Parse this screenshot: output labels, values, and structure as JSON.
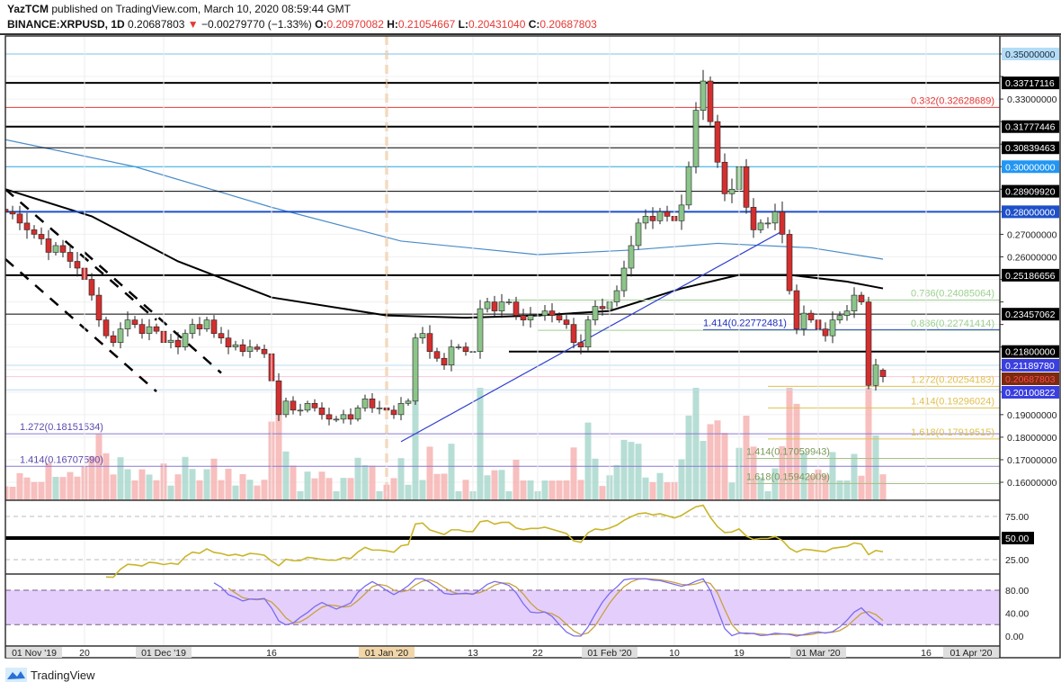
{
  "header": {
    "author": "YazTCM",
    "published": "published on TradingView.com, March 10, 2020 08:59:44 GMT",
    "symbol": "BINANCE:XRPUSD, 1D",
    "last": "0.20687803",
    "change": "−0.00279770 (−1.33%)",
    "o_label": "O:",
    "o": "0.20970082",
    "h_label": "H:",
    "h": "0.21054667",
    "l_label": "L:",
    "l": "0.20431040",
    "c_label": "C:",
    "c": "0.20687803"
  },
  "brand": "TradingView",
  "colors": {
    "up": "#8cc48a",
    "down": "#d32f2f",
    "vol_up": "#9fd3c7",
    "vol_down": "#f4a9a8",
    "rsi": "#c9b52a",
    "stoch_k": "#7b6cf0",
    "stoch_d": "#c8a040",
    "stoch_band": "#e4cffc"
  },
  "chart_data": {
    "type": "candlestick",
    "start_date": "2019-11-09",
    "closes": [
      0.28,
      0.279,
      0.275,
      0.272,
      0.27,
      0.268,
      0.262,
      0.265,
      0.262,
      0.258,
      0.255,
      0.25,
      0.243,
      0.232,
      0.225,
      0.222,
      0.228,
      0.232,
      0.23,
      0.226,
      0.229,
      0.227,
      0.222,
      0.223,
      0.22,
      0.226,
      0.23,
      0.228,
      0.232,
      0.226,
      0.224,
      0.22,
      0.221,
      0.218,
      0.22,
      0.219,
      0.217,
      0.205,
      0.19,
      0.196,
      0.192,
      0.192,
      0.195,
      0.193,
      0.19,
      0.188,
      0.188,
      0.19,
      0.188,
      0.193,
      0.197,
      0.193,
      0.193,
      0.192,
      0.19,
      0.195,
      0.196,
      0.224,
      0.226,
      0.218,
      0.215,
      0.212,
      0.22,
      0.22,
      0.218,
      0.218,
      0.237,
      0.24,
      0.236,
      0.24,
      0.24,
      0.234,
      0.232,
      0.234,
      0.234,
      0.236,
      0.234,
      0.232,
      0.23,
      0.222,
      0.22,
      0.232,
      0.238,
      0.237,
      0.24,
      0.245,
      0.255,
      0.265,
      0.275,
      0.278,
      0.276,
      0.28,
      0.278,
      0.276,
      0.283,
      0.3,
      0.325,
      0.338,
      0.32,
      0.302,
      0.288,
      0.29,
      0.3,
      0.282,
      0.272,
      0.275,
      0.275,
      0.28,
      0.27,
      0.245,
      0.228,
      0.235,
      0.232,
      0.228,
      0.225,
      0.232,
      0.234,
      0.236,
      0.243,
      0.24,
      0.203,
      0.212,
      0.20687803
    ],
    "last_ohlc": {
      "open": 0.20970082,
      "high": 0.21054667,
      "low": 0.2043104,
      "close": 0.20687803
    },
    "price_axis": {
      "min": 0.16,
      "max": 0.35,
      "step": 0.01,
      "decimals": 8
    },
    "levels": [
      {
        "price": 0.35,
        "color": "#7cc3e8",
        "axis_label": "0.35000000",
        "label_bg": "#b3dcf7",
        "label_fg": "#1a2a3a"
      },
      {
        "price": 0.33717116,
        "color": "#000000",
        "width": 2,
        "axis_label": "0.33717116",
        "label_bg": "#000000",
        "label_fg": "#ffffff"
      },
      {
        "price": 0.32628689,
        "color": "#e53935",
        "fib_label": "0.382(0.32628689)",
        "label_pos": "right"
      },
      {
        "price": 0.31777446,
        "color": "#000000",
        "width": 2,
        "axis_label": "0.31777446",
        "label_bg": "#000000",
        "label_fg": "#ffffff"
      },
      {
        "price": 0.30839463,
        "color": "#000000",
        "axis_label": "0.30839463",
        "label_bg": "#000000",
        "label_fg": "#ffffff"
      },
      {
        "price": 0.3,
        "color": "#29a9e6",
        "axis_label": "0.30000000",
        "label_bg": "#2196f3",
        "label_fg": "#ffffff"
      },
      {
        "price": 0.2890992,
        "color": "#000000",
        "axis_label": "0.28909920",
        "label_bg": "#000000",
        "label_fg": "#ffffff"
      },
      {
        "price": 0.28,
        "color": "#1e4fc8",
        "width": 2,
        "axis_label": "0.28000000",
        "label_bg": "#1e50c8",
        "label_fg": "#ffffff"
      },
      {
        "price": 0.25186656,
        "color": "#000000",
        "width": 2,
        "axis_label": "0.25186656",
        "label_bg": "#000000",
        "label_fg": "#ffffff"
      },
      {
        "price": 0.24085064,
        "color": "#9ccf8f",
        "from": "2020-01-18",
        "fib_label": "0.786(0.24085064)",
        "label_pos": "right"
      },
      {
        "price": 0.23457062,
        "color": "#000000",
        "axis_label": "0.23457062",
        "label_bg": "#000000",
        "label_fg": "#ffffff"
      },
      {
        "price": 0.22741414,
        "color": "#9ccf8f",
        "from": "2020-01-22",
        "fib_label": "0.886(0.22741414)",
        "label_pos": "right"
      },
      {
        "price": 0.22772481,
        "color": "#3a4fd0",
        "from": "2020-02-14",
        "fib_label": "1.414(0.22772481)",
        "label_pos": "start",
        "label_color": "#1f2fc0"
      },
      {
        "price": 0.218,
        "color": "#000000",
        "width": 2,
        "from": "2020-01-18",
        "axis_label": "0.21800000",
        "label_bg": "#000000",
        "label_fg": "#ffffff"
      },
      {
        "price": 0.2118978,
        "color": "#b9dcf3",
        "axis_label": "0.21189780",
        "label_bg": "#3a3fe0",
        "label_fg": "#ffffff"
      },
      {
        "price": 0.20687803,
        "color": "#f7c6dc",
        "axis_label": "0.20687803",
        "label_bg": "#7a2a10",
        "label_fg": "#ff4b4b"
      },
      {
        "price": 0.20254183,
        "color": "#e0c050",
        "from": "2020-02-23",
        "fib_label": "1.272(0.20254183)",
        "label_pos": "right"
      },
      {
        "price": 0.20100822,
        "color": "#b9dcf3",
        "axis_label": "0.20100822",
        "label_bg": "#3a3fe0",
        "label_fg": "#ffffff"
      },
      {
        "price": 0.19296024,
        "color": "#e0c050",
        "from": "2020-02-23",
        "fib_label": "1.414(0.19296024)",
        "label_pos": "right"
      },
      {
        "price": 0.18151534,
        "color": "#8a7ad0",
        "fib_label": "1.272(0.18151534)",
        "label_pos": "left",
        "label_color": "#5a4ab0"
      },
      {
        "price": 0.17919515,
        "color": "#e0c050",
        "from": "2020-02-23",
        "fib_label": "1.618(0.17919515)",
        "label_pos": "right"
      },
      {
        "price": 0.17059943,
        "color": "#a8c08a",
        "from": "2020-02-20",
        "fib_label": "1.414(0.17059943)",
        "label_pos": "start",
        "label_color": "#7a9a5a"
      },
      {
        "price": 0.1670759,
        "color": "#8a7ad0",
        "fib_label": "1.414(0.16707590)",
        "label_pos": "left",
        "label_color": "#5a4ab0"
      },
      {
        "price": 0.15942009,
        "color": "#a8c08a",
        "from": "2020-02-20",
        "fib_label": "1.618(0.15942009)",
        "label_pos": "start",
        "label_color": "#7a9a5a"
      }
    ],
    "trendlines": [
      {
        "color": "#3040d0",
        "style": "solid",
        "from": [
          "2020-01-03",
          0.178
        ],
        "to": [
          "2020-02-25",
          0.2714
        ]
      },
      {
        "color": "#000000",
        "style": "dashed",
        "from": [
          "2019-11-09",
          0.29
        ],
        "to": [
          "2019-11-30",
          0.232
        ]
      },
      {
        "color": "#000000",
        "style": "dashed",
        "from": [
          "2019-11-09",
          0.259
        ],
        "to": [
          "2019-11-30",
          0.2003
        ]
      },
      {
        "color": "#000000",
        "style": "dashed",
        "from": [
          "2019-11-20",
          0.262
        ],
        "to": [
          "2019-12-09",
          0.2085
        ]
      }
    ],
    "moving_averages": [
      {
        "color": "#000000",
        "points": [
          [
            "2019-11-09",
            0.29
          ],
          [
            "2019-11-21",
            0.278
          ],
          [
            "2019-12-03",
            0.258
          ],
          [
            "2019-12-16",
            0.242
          ],
          [
            "2020-01-01",
            0.234
          ],
          [
            "2020-01-12",
            0.233
          ],
          [
            "2020-01-22",
            0.234
          ],
          [
            "2020-02-01",
            0.236
          ],
          [
            "2020-02-11",
            0.246
          ],
          [
            "2020-02-19",
            0.252
          ],
          [
            "2020-02-26",
            0.252
          ],
          [
            "2020-03-05",
            0.249
          ],
          [
            "2020-03-10",
            0.246
          ]
        ]
      },
      {
        "color": "#4a8cc8",
        "points": [
          [
            "2019-11-09",
            0.312
          ],
          [
            "2019-11-27",
            0.3
          ],
          [
            "2019-12-16",
            0.282
          ],
          [
            "2020-01-03",
            0.267
          ],
          [
            "2020-01-22",
            0.261
          ],
          [
            "2020-02-04",
            0.263
          ],
          [
            "2020-02-16",
            0.266
          ],
          [
            "2020-02-29",
            0.264
          ],
          [
            "2020-03-10",
            0.259
          ]
        ]
      }
    ],
    "event_marker": {
      "date": "2020-01-01",
      "color": "#f5c89a"
    },
    "time_axis": [
      {
        "label": "01 Nov '19",
        "date": "2019-11-01",
        "boxed": true,
        "pinned_left": true
      },
      {
        "label": "20",
        "date": "2019-11-20"
      },
      {
        "label": "01 Dec '19",
        "date": "2019-12-01",
        "boxed": true
      },
      {
        "label": "16",
        "date": "2019-12-16"
      },
      {
        "label": "01 Jan '20",
        "date": "2020-01-01",
        "boxed": true,
        "highlight": true
      },
      {
        "label": "13",
        "date": "2020-01-13"
      },
      {
        "label": "22",
        "date": "2020-01-22"
      },
      {
        "label": "01 Feb '20",
        "date": "2020-02-01",
        "boxed": true
      },
      {
        "label": "10",
        "date": "2020-02-10"
      },
      {
        "label": "19",
        "date": "2020-02-19"
      },
      {
        "label": "01 Mar '20",
        "date": "2020-03-01",
        "boxed": true
      },
      {
        "label": "16",
        "date": "2020-03-16"
      },
      {
        "label": "01 Apr '20",
        "date": "2020-04-01",
        "boxed": true
      }
    ],
    "rsi": {
      "period": 14,
      "levels": [
        75,
        50,
        25
      ],
      "tick_labels": [
        "75.00",
        "50.00",
        "25.00"
      ],
      "midline_label": "50.00"
    },
    "stoch_rsi": {
      "levels": [
        80,
        20
      ],
      "tick_labels": [
        "80.00",
        "40.00",
        "0.00"
      ],
      "tick_values": [
        80,
        40,
        0
      ]
    }
  }
}
